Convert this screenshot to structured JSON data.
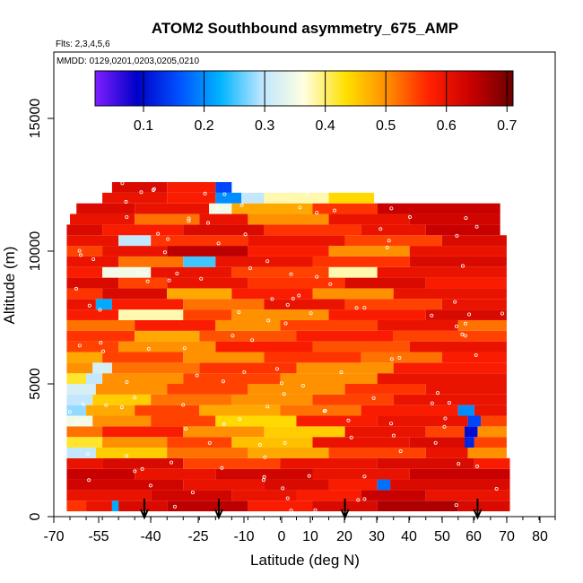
{
  "chart_data": {
    "type": "heatmap",
    "title": "ATOM2 Southbound asymmetry_675_AMP",
    "subtitle_flights": "Flts: 2,3,4,5,6",
    "subtitle_dates": "MMDD: 0129,0201,0203,0205,0210",
    "xlabel": "Latitude (deg N)",
    "ylabel": "Altitude (m)",
    "xlim": [
      -70,
      85
    ],
    "ylim": [
      0,
      17500
    ],
    "x_tick_labels": [
      "-70",
      "-55",
      "-40",
      "-25",
      "-10",
      "0",
      "10",
      "20",
      "30",
      "40",
      "50",
      "60",
      "70",
      "80"
    ],
    "y_tick_labels": [
      "0",
      "5000",
      "10000",
      "15000"
    ],
    "colorbar": {
      "range": [
        0.02,
        0.71
      ],
      "tick_labels": [
        "0.1",
        "0.2",
        "0.3",
        "0.4",
        "0.5",
        "0.6",
        "0.7"
      ],
      "colors": [
        "#7f1fff",
        "#0000c8",
        "#0050ff",
        "#00b4ff",
        "#bfe6ff",
        "#ffffe0",
        "#ffe000",
        "#ff8c00",
        "#ff2000",
        "#c80000",
        "#6b0000"
      ]
    },
    "profile_latitudes": [
      -42,
      -19,
      20,
      61
    ],
    "rows": [
      {
        "alt": 200,
        "segments": [
          [
            -66,
            -60,
            0.56
          ],
          [
            -60,
            -52,
            0.6
          ],
          [
            -52,
            -50,
            0.22
          ],
          [
            -50,
            -35,
            0.62
          ],
          [
            -35,
            -10,
            0.65
          ],
          [
            -10,
            10,
            0.58
          ],
          [
            10,
            30,
            0.62
          ],
          [
            30,
            55,
            0.66
          ],
          [
            55,
            71,
            0.62
          ]
        ]
      },
      {
        "alt": 600,
        "segments": [
          [
            -66,
            -40,
            0.6
          ],
          [
            -40,
            -15,
            0.63
          ],
          [
            -15,
            5,
            0.6
          ],
          [
            5,
            25,
            0.58
          ],
          [
            25,
            45,
            0.64
          ],
          [
            45,
            71,
            0.6
          ]
        ]
      },
      {
        "alt": 1000,
        "segments": [
          [
            -66,
            -30,
            0.63
          ],
          [
            -30,
            -5,
            0.6
          ],
          [
            -5,
            15,
            0.62
          ],
          [
            15,
            30,
            0.58
          ],
          [
            30,
            34,
            0.18
          ],
          [
            34,
            71,
            0.62
          ]
        ]
      },
      {
        "alt": 1400,
        "segments": [
          [
            -66,
            -45,
            0.64
          ],
          [
            -45,
            -20,
            0.6
          ],
          [
            -20,
            10,
            0.63
          ],
          [
            10,
            40,
            0.6
          ],
          [
            40,
            71,
            0.64
          ]
        ]
      },
      {
        "alt": 1800,
        "segments": [
          [
            -66,
            -55,
            0.6
          ],
          [
            -55,
            -30,
            0.62
          ],
          [
            -30,
            0,
            0.55
          ],
          [
            0,
            30,
            0.6
          ],
          [
            30,
            60,
            0.62
          ],
          [
            60,
            71,
            0.58
          ]
        ]
      },
      {
        "alt": 2200,
        "segments": [
          [
            -66,
            -57,
            0.3
          ],
          [
            -57,
            -35,
            0.45
          ],
          [
            -35,
            -10,
            0.52
          ],
          [
            -10,
            15,
            0.48
          ],
          [
            15,
            45,
            0.55
          ],
          [
            45,
            58,
            0.6
          ],
          [
            58,
            70,
            0.5
          ]
        ]
      },
      {
        "alt": 2600,
        "segments": [
          [
            -66,
            -55,
            0.42
          ],
          [
            -55,
            -35,
            0.5
          ],
          [
            -35,
            -15,
            0.55
          ],
          [
            -15,
            10,
            0.46
          ],
          [
            10,
            40,
            0.6
          ],
          [
            40,
            57,
            0.62
          ],
          [
            57,
            60,
            0.12
          ],
          [
            60,
            70,
            0.55
          ]
        ]
      },
      {
        "alt": 3000,
        "segments": [
          [
            -66,
            -55,
            0.52
          ],
          [
            -55,
            -30,
            0.58
          ],
          [
            -30,
            -5,
            0.5
          ],
          [
            -5,
            20,
            0.45
          ],
          [
            20,
            45,
            0.6
          ],
          [
            45,
            57,
            0.55
          ],
          [
            57,
            61,
            0.1
          ],
          [
            61,
            70,
            0.5
          ]
        ]
      },
      {
        "alt": 3400,
        "segments": [
          [
            -66,
            -58,
            0.35
          ],
          [
            -58,
            -40,
            0.5
          ],
          [
            -40,
            -20,
            0.55
          ],
          [
            -20,
            5,
            0.44
          ],
          [
            5,
            30,
            0.58
          ],
          [
            30,
            58,
            0.6
          ],
          [
            58,
            62,
            0.15
          ],
          [
            62,
            70,
            0.55
          ]
        ]
      },
      {
        "alt": 3800,
        "segments": [
          [
            -66,
            -60,
            0.28
          ],
          [
            -60,
            -45,
            0.48
          ],
          [
            -45,
            -25,
            0.55
          ],
          [
            -25,
            0,
            0.48
          ],
          [
            0,
            25,
            0.52
          ],
          [
            25,
            55,
            0.58
          ],
          [
            55,
            60,
            0.2
          ],
          [
            60,
            70,
            0.6
          ]
        ]
      },
      {
        "alt": 4200,
        "segments": [
          [
            -66,
            -58,
            0.3
          ],
          [
            -58,
            -40,
            0.45
          ],
          [
            -40,
            -15,
            0.52
          ],
          [
            -15,
            10,
            0.5
          ],
          [
            10,
            35,
            0.55
          ],
          [
            35,
            70,
            0.6
          ]
        ]
      },
      {
        "alt": 4600,
        "segments": [
          [
            -66,
            -57,
            0.32
          ],
          [
            -57,
            -35,
            0.5
          ],
          [
            -35,
            -10,
            0.55
          ],
          [
            -10,
            20,
            0.5
          ],
          [
            20,
            45,
            0.56
          ],
          [
            45,
            70,
            0.6
          ]
        ]
      },
      {
        "alt": 5000,
        "segments": [
          [
            -66,
            -60,
            0.42
          ],
          [
            -60,
            -55,
            0.3
          ],
          [
            -55,
            -30,
            0.5
          ],
          [
            -30,
            0,
            0.55
          ],
          [
            0,
            30,
            0.5
          ],
          [
            30,
            70,
            0.6
          ]
        ]
      },
      {
        "alt": 5400,
        "segments": [
          [
            -66,
            -58,
            0.5
          ],
          [
            -58,
            -52,
            0.32
          ],
          [
            -52,
            -25,
            0.52
          ],
          [
            -25,
            5,
            0.56
          ],
          [
            5,
            35,
            0.5
          ],
          [
            35,
            70,
            0.58
          ]
        ]
      },
      {
        "alt": 5800,
        "segments": [
          [
            -66,
            -55,
            0.48
          ],
          [
            -55,
            -30,
            0.55
          ],
          [
            -30,
            -5,
            0.5
          ],
          [
            -5,
            25,
            0.56
          ],
          [
            25,
            50,
            0.52
          ],
          [
            50,
            70,
            0.58
          ]
        ]
      },
      {
        "alt": 6200,
        "segments": [
          [
            -66,
            -50,
            0.55
          ],
          [
            -50,
            -20,
            0.5
          ],
          [
            -20,
            10,
            0.58
          ],
          [
            10,
            40,
            0.54
          ],
          [
            40,
            70,
            0.6
          ]
        ]
      },
      {
        "alt": 6600,
        "segments": [
          [
            -66,
            -45,
            0.56
          ],
          [
            -45,
            -25,
            0.48
          ],
          [
            -25,
            5,
            0.54
          ],
          [
            5,
            35,
            0.58
          ],
          [
            35,
            70,
            0.55
          ]
        ]
      },
      {
        "alt": 7000,
        "segments": [
          [
            -66,
            -45,
            0.52
          ],
          [
            -45,
            -20,
            0.58
          ],
          [
            -20,
            0,
            0.5
          ],
          [
            0,
            30,
            0.55
          ],
          [
            30,
            55,
            0.6
          ],
          [
            55,
            70,
            0.52
          ]
        ]
      },
      {
        "alt": 7400,
        "segments": [
          [
            -66,
            -50,
            0.58
          ],
          [
            -50,
            -30,
            0.38
          ],
          [
            -30,
            -15,
            0.55
          ],
          [
            -15,
            15,
            0.5
          ],
          [
            15,
            45,
            0.58
          ],
          [
            45,
            70,
            0.62
          ]
        ]
      },
      {
        "alt": 7800,
        "segments": [
          [
            -66,
            -57,
            0.6
          ],
          [
            -57,
            -52,
            0.22
          ],
          [
            -52,
            -30,
            0.58
          ],
          [
            -30,
            -5,
            0.52
          ],
          [
            -5,
            20,
            0.6
          ],
          [
            20,
            50,
            0.55
          ],
          [
            50,
            70,
            0.6
          ]
        ]
      },
      {
        "alt": 8200,
        "segments": [
          [
            -66,
            -55,
            0.56
          ],
          [
            -55,
            -35,
            0.62
          ],
          [
            -35,
            -15,
            0.48
          ],
          [
            -15,
            10,
            0.58
          ],
          [
            10,
            35,
            0.5
          ],
          [
            35,
            70,
            0.6
          ]
        ]
      },
      {
        "alt": 8600,
        "segments": [
          [
            -66,
            -50,
            0.62
          ],
          [
            -50,
            -35,
            0.55
          ],
          [
            -35,
            -10,
            0.6
          ],
          [
            -10,
            20,
            0.56
          ],
          [
            20,
            45,
            0.62
          ],
          [
            45,
            70,
            0.58
          ]
        ]
      },
      {
        "alt": 9000,
        "segments": [
          [
            -66,
            -55,
            0.58
          ],
          [
            -55,
            -40,
            0.35
          ],
          [
            -40,
            -15,
            0.6
          ],
          [
            -15,
            15,
            0.55
          ],
          [
            15,
            30,
            0.38
          ],
          [
            30,
            70,
            0.6
          ]
        ]
      },
      {
        "alt": 9400,
        "segments": [
          [
            -66,
            -50,
            0.6
          ],
          [
            -50,
            -30,
            0.52
          ],
          [
            -30,
            -20,
            0.25
          ],
          [
            -20,
            10,
            0.6
          ],
          [
            10,
            40,
            0.56
          ],
          [
            40,
            70,
            0.62
          ]
        ]
      },
      {
        "alt": 9800,
        "segments": [
          [
            -66,
            -55,
            0.55
          ],
          [
            -55,
            -35,
            0.6
          ],
          [
            -35,
            -10,
            0.65
          ],
          [
            -10,
            15,
            0.58
          ],
          [
            15,
            40,
            0.5
          ],
          [
            40,
            70,
            0.6
          ]
        ]
      },
      {
        "alt": 10200,
        "segments": [
          [
            -66,
            -50,
            0.6
          ],
          [
            -50,
            -40,
            0.3
          ],
          [
            -40,
            -10,
            0.56
          ],
          [
            -10,
            20,
            0.6
          ],
          [
            20,
            50,
            0.55
          ],
          [
            50,
            70,
            0.62
          ]
        ]
      },
      {
        "alt": 10600,
        "segments": [
          [
            -66,
            -55,
            0.62
          ],
          [
            -55,
            -30,
            0.58
          ],
          [
            -30,
            -5,
            0.62
          ],
          [
            -5,
            25,
            0.56
          ],
          [
            25,
            45,
            0.6
          ],
          [
            45,
            68,
            0.64
          ]
        ]
      },
      {
        "alt": 11000,
        "segments": [
          [
            -65,
            -45,
            0.6
          ],
          [
            -45,
            -25,
            0.52
          ],
          [
            -25,
            -10,
            0.6
          ],
          [
            -10,
            15,
            0.5
          ],
          [
            15,
            40,
            0.6
          ],
          [
            40,
            68,
            0.63
          ]
        ]
      },
      {
        "alt": 11400,
        "segments": [
          [
            -63,
            -45,
            0.62
          ],
          [
            -45,
            -22,
            0.6
          ],
          [
            -22,
            -15,
            0.35
          ],
          [
            -15,
            10,
            0.48
          ],
          [
            10,
            30,
            0.56
          ],
          [
            30,
            68,
            0.64
          ]
        ]
      },
      {
        "alt": 11800,
        "segments": [
          [
            -55,
            -35,
            0.6
          ],
          [
            -35,
            -20,
            0.58
          ],
          [
            -20,
            -12,
            0.2
          ],
          [
            -12,
            -5,
            0.3
          ],
          [
            -5,
            15,
            0.38
          ],
          [
            15,
            29,
            0.44
          ]
        ]
      },
      {
        "alt": 12200,
        "segments": [
          [
            -52,
            -35,
            0.62
          ],
          [
            -35,
            -20,
            0.58
          ],
          [
            -20,
            -15,
            0.15
          ]
        ]
      }
    ]
  }
}
